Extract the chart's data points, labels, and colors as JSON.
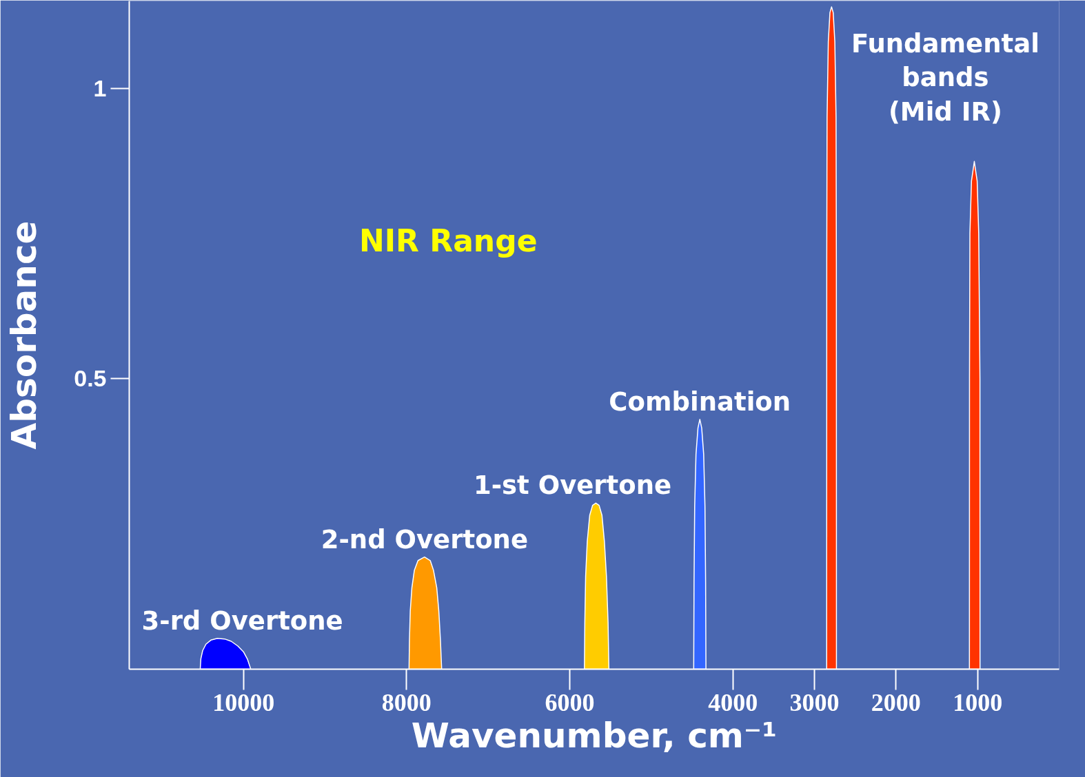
{
  "chart_data": {
    "type": "area",
    "xlabel": "Wavenumber, cm⁻¹",
    "ylabel": "Absorbance",
    "xlim": [
      11400,
      0
    ],
    "ylim": [
      0,
      1.15
    ],
    "xticks": [
      10000,
      8000,
      6000,
      4000,
      3000,
      2000,
      1000
    ],
    "yticks": [
      0.5,
      1
    ],
    "series": [
      {
        "name": "3-rd Overtone",
        "color": "#0000ff",
        "x": [
          10530,
          10522,
          10500,
          10460,
          10400,
          10320,
          10230,
          10150,
          10070,
          10000,
          9950,
          9910
        ],
        "values": [
          0,
          0.018,
          0.032,
          0.043,
          0.05,
          0.053,
          0.052,
          0.048,
          0.04,
          0.03,
          0.017,
          0
        ]
      },
      {
        "name": "2-nd Overtone",
        "color": "#ff9900",
        "x": [
          7970,
          7965,
          7955,
          7935,
          7905,
          7860,
          7780,
          7710,
          7670,
          7630,
          7605,
          7585,
          7570
        ],
        "values": [
          0,
          0.05,
          0.1,
          0.14,
          0.17,
          0.187,
          0.193,
          0.187,
          0.17,
          0.14,
          0.1,
          0.05,
          0
        ]
      },
      {
        "name": "1-st Overtone",
        "color": "#ffcc00",
        "x": [
          5820,
          5815,
          5805,
          5785,
          5755,
          5720,
          5680,
          5640,
          5605,
          5575,
          5550,
          5530,
          5520
        ],
        "values": [
          0,
          0.08,
          0.16,
          0.22,
          0.265,
          0.282,
          0.286,
          0.282,
          0.265,
          0.22,
          0.16,
          0.08,
          0
        ]
      },
      {
        "name": "Combination",
        "color": "#3366ff",
        "x": [
          4480,
          4476,
          4468,
          4452,
          4428,
          4405,
          4382,
          4358,
          4342,
          4334,
          4330
        ],
        "values": [
          0,
          0.15,
          0.28,
          0.37,
          0.415,
          0.43,
          0.415,
          0.37,
          0.28,
          0.15,
          0
        ]
      },
      {
        "name": "Fundamental\nbands\n(Mid IR)",
        "color": "#ff3300",
        "x": [
          2850,
          2849,
          2845,
          2830,
          2810,
          2790,
          2770,
          2750,
          2735,
          2731,
          2730,
          1100,
          1099,
          1094,
          1075,
          1040,
          1005,
          986,
          971,
          970
        ],
        "values": [
          0,
          0.7,
          0.95,
          1.08,
          1.13,
          1.14,
          1.13,
          1.08,
          0.95,
          0.7,
          0,
          0,
          0.5,
          0.75,
          0.84,
          0.874,
          0.84,
          0.75,
          0.5,
          0
        ]
      }
    ],
    "annotations": [
      "NIR Range"
    ]
  }
}
